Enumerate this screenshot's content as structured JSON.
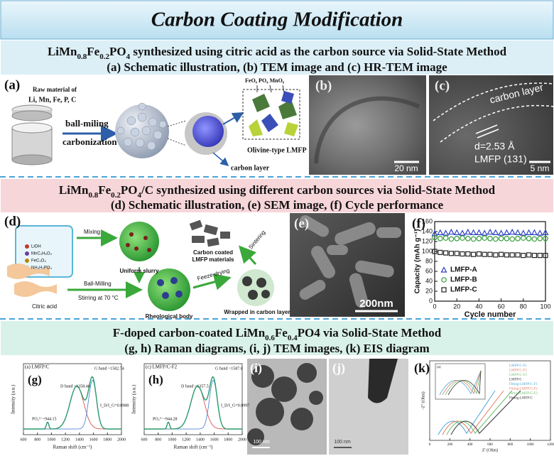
{
  "title": "Carbon Coating Modification",
  "sections": [
    {
      "heading": [
        [
          "LiMn",
          "0.8",
          "Fe",
          "0.2",
          "PO",
          "4",
          " synthesized using citric acid as the carbon source via Solid-State Method"
        ],
        [
          "(a) Schematic illustration, (b) TEM image and (c) HR-TEM image"
        ]
      ],
      "panels": {
        "a": {
          "label": "(a)",
          "raw_title": "Raw material of",
          "raw_items": "Li,  Mn,  Fe,  P,  C",
          "step1": "ball-miling",
          "step2": "carbonization",
          "polyhedra": "FeO₆  PO₄  MnO₆",
          "structure": "Olivine-type LMFP",
          "coating": "carbon layer"
        },
        "b": {
          "label": "(b)",
          "scale": "20 nm"
        },
        "c": {
          "label": "(c)",
          "layer": "carbon layer",
          "spacing": "d=2.53 Å",
          "plane": "LMFP (131)",
          "scale": "5 nm"
        }
      }
    },
    {
      "heading": [
        [
          "LiMn",
          "0.8",
          "Fe",
          "0.2",
          "PO",
          "4",
          "/C synthesized using different carbon sources via Solid-State Method"
        ],
        [
          "(d) Schematic illustration, (e) SEM image, (f) Cycle performance"
        ]
      ],
      "panels": {
        "d": {
          "label": "(d)",
          "reagents": [
            "LiOH",
            "MnC₄H₆O₄",
            "FeC₂O₄",
            "NH₄H₂PO₄"
          ],
          "mixing": "Mixing",
          "slurry": "Uniform slurry",
          "coated": [
            "Carbon coated",
            "LMFP materials"
          ],
          "sintering": "Sintering",
          "milling": "Ball-Milling",
          "stirring": "Stirring at 70 °C",
          "citric": "Citric acid",
          "rheological": "Rheological body",
          "drying": "Feeze-drying",
          "wrapped": "Wrapped in carbon layer"
        },
        "e": {
          "label": "(e)",
          "scale": "200nm"
        },
        "f": {
          "type": "scatter",
          "label": "(f)",
          "xlabel": "Cycle number",
          "ylabel": "Capacity (mAh g⁻¹)",
          "xlim": [
            0,
            100
          ],
          "ylim": [
            0,
            160
          ],
          "xticks": [
            0,
            20,
            40,
            60,
            80,
            100
          ],
          "yticks": [
            0,
            20,
            40,
            60,
            80,
            100,
            120,
            140,
            160
          ],
          "legend": "lower left",
          "x": [
            0,
            5,
            10,
            15,
            20,
            25,
            30,
            35,
            40,
            45,
            50,
            55,
            60,
            65,
            70,
            75,
            80,
            85,
            90,
            95,
            100
          ],
          "series": [
            {
              "name": "LMFP-A",
              "color": "#2b3fc6",
              "marker": "triangle",
              "values": [
                136,
                138,
                137,
                139,
                138,
                137,
                139,
                138,
                138,
                137,
                139,
                138,
                137,
                138,
                139,
                138,
                137,
                138,
                138,
                137,
                138
              ]
            },
            {
              "name": "LMFP-B",
              "color": "#2f9a35",
              "marker": "circle",
              "values": [
                128,
                126,
                127,
                125,
                126,
                127,
                126,
                125,
                126,
                127,
                126,
                125,
                126,
                126,
                125,
                126,
                127,
                126,
                125,
                126,
                126
              ]
            },
            {
              "name": "LMFP-C",
              "color": "#222222",
              "marker": "square",
              "values": [
                100,
                98,
                97,
                96,
                96,
                95,
                95,
                94,
                95,
                94,
                94,
                93,
                94,
                93,
                93,
                93,
                92,
                93,
                92,
                92,
                92
              ]
            }
          ]
        }
      }
    },
    {
      "heading": [
        [
          "F-doped carbon-coated LiMn",
          "0.6",
          "Fe",
          "0.4",
          "PO4 via Solid-State Method"
        ],
        [
          "(g, h) Raman diagrams, (i, j) TEM images, (k) EIS diagram"
        ]
      ],
      "panels": {
        "g": {
          "label": "(g)",
          "sample": "(a) LMFP/C",
          "g_band": "G band ~1582.74",
          "d_band": "D band ~1358.46",
          "ratio": "I_D/I_G=0.8988",
          "po4": "PO₄³⁻~944.15",
          "xlabel": "Raman shift (cm⁻¹)",
          "ylabel": "Intensity (a.u.)",
          "xticks": [
            600,
            800,
            1000,
            1200,
            1400,
            1600,
            1800,
            2000
          ]
        },
        "h": {
          "label": "(h)",
          "sample": "(c) LMFP/C-F2",
          "g_band": "G band ~1587.8",
          "d_band": "D band ~1357.5",
          "ratio": "I_D/I_G=0.8997",
          "po4": "PO₄³⁻~944.28",
          "xlabel": "Raman shift (cm⁻¹)",
          "ylabel": "Intensity (a.u.)",
          "xticks": [
            600,
            800,
            1000,
            1200,
            1400,
            1600,
            1800,
            2000
          ]
        },
        "i": {
          "label": "(i)",
          "scale": "100 nm"
        },
        "j": {
          "label": "(j)",
          "scale": "100 nm"
        },
        "k": {
          "label": "(k)",
          "inset": "(a)",
          "legend": [
            "LMFP/C-F1",
            "LMFP/C-F2",
            "LMFP/C-F3",
            "LMFP/C",
            "Fitting-LMFP/C-F1",
            "Fitting-LMFP/C-F2",
            "Fitting-LMFP/C-F3",
            "Fitting-LMFP/C"
          ],
          "xlabel": "Z' (Ohm)",
          "ylabel": "-Z'' (Ohm)",
          "xticks": [
            0,
            200,
            400,
            600,
            800,
            1000,
            1200
          ]
        }
      }
    }
  ]
}
